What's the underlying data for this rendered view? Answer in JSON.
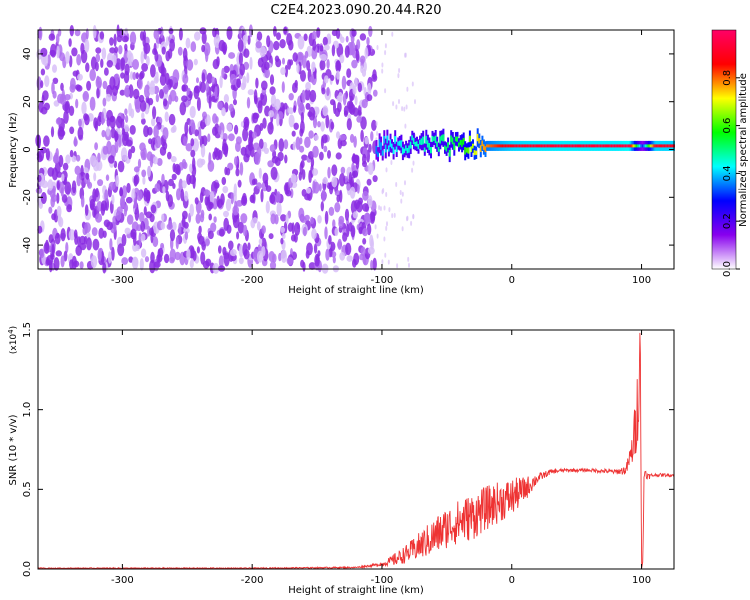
{
  "title": "C2E4.2023.090.20.44.R20",
  "chart_data": [
    {
      "type": "heatmap",
      "xlabel": "Height of straight line (km)",
      "ylabel": "Frequency (Hz)",
      "xlim": [
        -365,
        125
      ],
      "ylim": [
        -50,
        50
      ],
      "xticks": [
        -300,
        -200,
        -100,
        0,
        100
      ],
      "yticks": [
        -40,
        -20,
        0,
        20,
        40
      ],
      "xtick_labels": [
        "-300",
        "-200",
        "-100",
        "0",
        "100"
      ],
      "ytick_labels": [
        "-40",
        "-20",
        "0",
        "20",
        "40"
      ],
      "colorbar": {
        "label": "Normalized spectral amplitude",
        "range": [
          0.0,
          1.0
        ],
        "ticks": [
          0.0,
          0.2,
          0.4,
          0.6,
          0.8
        ],
        "tick_labels": [
          "0.0",
          "0.2",
          "0.4",
          "0.6",
          "0.8"
        ],
        "colors": [
          "#ffffff",
          "#8800ee",
          "#0000ff",
          "#00ffff",
          "#00ff00",
          "#ffff00",
          "#ff0000",
          "#ff0066"
        ]
      },
      "features": {
        "noise_region_x": [
          -365,
          -105
        ],
        "noise_level": 0.1,
        "signal_band_freq_hz": 1.5,
        "signal_band_x": [
          -105,
          125
        ],
        "signal_amplitude_profile": {
          "x": [
            -105,
            -95,
            -80,
            -60,
            -40,
            -25,
            -10,
            0,
            20,
            40,
            60,
            80,
            90,
            95,
            100,
            110,
            125
          ],
          "amplitude": [
            0.35,
            0.42,
            0.45,
            0.48,
            0.55,
            0.75,
            0.85,
            0.9,
            0.92,
            0.93,
            0.93,
            0.93,
            0.95,
            0.6,
            0.3,
            0.9,
            0.9
          ]
        }
      },
      "grid": false
    },
    {
      "type": "line",
      "xlabel": "Height of straight line (km)",
      "ylabel": "SNR (10 * v/v)",
      "scale_label": "(x10",
      "scale_exp": "4",
      "scale_close": ")",
      "xlim": [
        -365,
        125
      ],
      "ylim": [
        0.0,
        1.5
      ],
      "xticks": [
        -300,
        -200,
        -100,
        0,
        100
      ],
      "yticks": [
        0.0,
        0.5,
        1.0,
        1.5
      ],
      "xtick_labels": [
        "-300",
        "-200",
        "-100",
        "0",
        "100"
      ],
      "ytick_labels": [
        "0.0",
        "0.5",
        "1.0",
        "1.5"
      ],
      "series": [
        {
          "color": "#ee3333",
          "x": [
            -365,
            -300,
            -200,
            -120,
            -100,
            -90,
            -80,
            -70,
            -60,
            -50,
            -40,
            -30,
            -20,
            -10,
            0,
            10,
            20,
            30,
            40,
            60,
            80,
            88,
            92,
            95,
            97,
            98,
            99,
            100,
            101,
            102,
            105,
            110,
            125
          ],
          "y": [
            0.005,
            0.005,
            0.005,
            0.01,
            0.03,
            0.06,
            0.1,
            0.15,
            0.2,
            0.26,
            0.3,
            0.33,
            0.38,
            0.42,
            0.45,
            0.5,
            0.57,
            0.61,
            0.62,
            0.62,
            0.61,
            0.62,
            0.72,
            0.85,
            1.05,
            1.2,
            1.5,
            0.0,
            0.05,
            0.62,
            0.58,
            0.59,
            0.59
          ],
          "noise_amplitude": [
            0.003,
            0.003,
            0.003,
            0.004,
            0.01,
            0.04,
            0.06,
            0.09,
            0.12,
            0.13,
            0.14,
            0.15,
            0.14,
            0.13,
            0.12,
            0.08,
            0.03,
            0.015,
            0.01,
            0.01,
            0.015,
            0.03,
            0.08,
            0.2,
            0.25,
            0.3,
            0.0,
            0.0,
            0.0,
            0.04,
            0.02,
            0.01,
            0.01
          ]
        }
      ],
      "grid": false
    }
  ]
}
